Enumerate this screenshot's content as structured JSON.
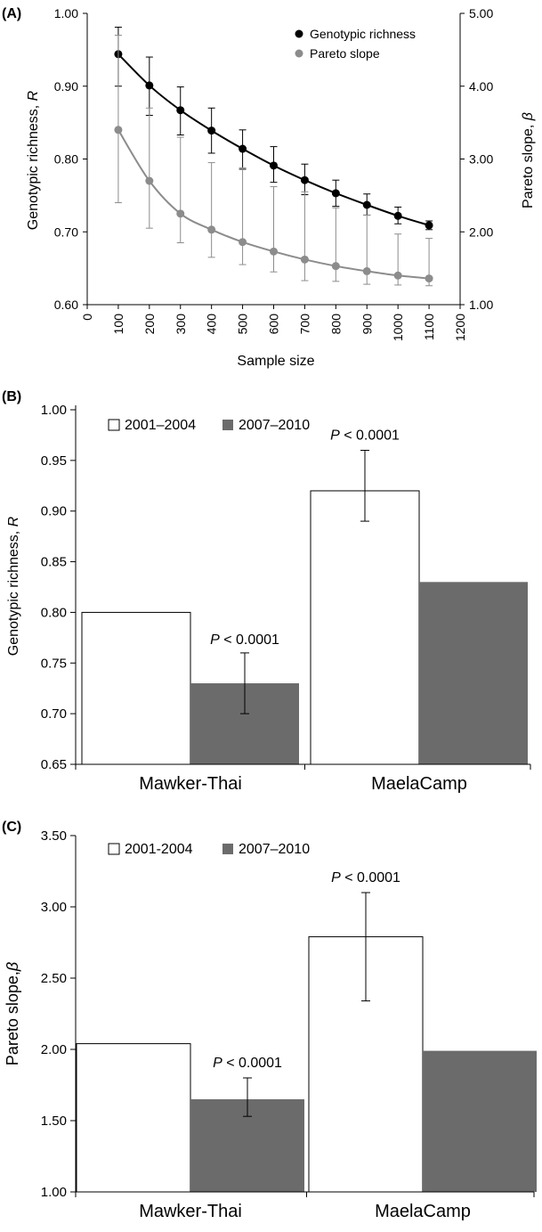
{
  "chart_data": [
    {
      "panel": "(A)",
      "type": "line",
      "xlabel": "Sample size",
      "ylabel_left": "Genotypic richness, R",
      "ylabel_right": "Pareto slope, β",
      "x_ticks": [
        "0",
        "100",
        "200",
        "300",
        "400",
        "500",
        "600",
        "700",
        "800",
        "900",
        "1000",
        "1100",
        "1200"
      ],
      "y_left_ticks": [
        "0.60",
        "0.70",
        "0.80",
        "0.90",
        "1.00"
      ],
      "y_right_ticks": [
        "1.00",
        "2.00",
        "3.00",
        "4.00",
        "5.00"
      ],
      "xlim": [
        0,
        1200
      ],
      "ylim_left": [
        0.6,
        1.0
      ],
      "ylim_right": [
        1.0,
        5.0
      ],
      "legend_position": "top-right",
      "series": [
        {
          "name": "Genotypic richness",
          "axis": "left",
          "color": "#000000",
          "x": [
            100,
            200,
            300,
            400,
            500,
            600,
            700,
            800,
            900,
            1000,
            1100
          ],
          "y": [
            0.944,
            0.901,
            0.867,
            0.839,
            0.814,
            0.791,
            0.771,
            0.753,
            0.737,
            0.722,
            0.709
          ],
          "err_low": [
            0.9,
            0.86,
            0.833,
            0.808,
            0.786,
            0.768,
            0.751,
            0.735,
            0.723,
            0.711,
            0.703
          ],
          "err_high": [
            0.981,
            0.94,
            0.899,
            0.87,
            0.84,
            0.817,
            0.793,
            0.771,
            0.752,
            0.734,
            0.715
          ]
        },
        {
          "name": "Pareto slope",
          "axis": "right",
          "color": "#8c8c8c",
          "x": [
            100,
            200,
            300,
            400,
            500,
            600,
            700,
            800,
            900,
            1000,
            1100
          ],
          "y": [
            3.4,
            2.7,
            2.25,
            2.03,
            1.86,
            1.73,
            1.62,
            1.53,
            1.46,
            1.4,
            1.36
          ],
          "err_low": [
            2.4,
            2.05,
            1.85,
            1.65,
            1.55,
            1.45,
            1.33,
            1.32,
            1.28,
            1.27,
            1.26
          ],
          "err_high": [
            4.7,
            3.7,
            3.3,
            2.95,
            2.88,
            2.62,
            2.55,
            2.33,
            2.23,
            1.97,
            1.91
          ]
        }
      ]
    },
    {
      "panel": "(B)",
      "type": "bar",
      "ylabel": "Genotypic richness, R",
      "categories": [
        "Mawker-Thai",
        "MaelaCamp"
      ],
      "y_ticks": [
        "0.65",
        "0.70",
        "0.75",
        "0.80",
        "0.85",
        "0.90",
        "0.95",
        "1.00"
      ],
      "ylim": [
        0.65,
        1.0
      ],
      "legend_position": "top-left",
      "series": [
        {
          "name": "2001–2004",
          "color": "#ffffff",
          "values": [
            0.8,
            0.92
          ]
        },
        {
          "name": "2007–2010",
          "color": "#6b6b6b",
          "values": [
            0.73,
            0.83
          ]
        }
      ],
      "error_bars": [
        {
          "category": "Mawker-Thai",
          "series": "2007–2010",
          "low": 0.7,
          "high": 0.76
        },
        {
          "category": "MaelaCamp",
          "series": "2001–2004",
          "low": 0.89,
          "high": 0.96
        }
      ],
      "annotations": [
        {
          "category": "Mawker-Thai",
          "label_italic": "P",
          "label_rest": " < 0.0001"
        },
        {
          "category": "MaelaCamp",
          "label_italic": "P",
          "label_rest": " < 0.0001"
        }
      ]
    },
    {
      "panel": "(C)",
      "type": "bar",
      "ylabel": "Pareto slope,β",
      "categories": [
        "Mawker-Thai",
        "MaelaCamp"
      ],
      "y_ticks": [
        "1.00",
        "1.50",
        "2.00",
        "2.50",
        "3.00",
        "3.50"
      ],
      "ylim": [
        1.0,
        3.5
      ],
      "legend_position": "top-left",
      "series": [
        {
          "name": "2001-2004",
          "color": "#ffffff",
          "values": [
            2.04,
            2.79
          ]
        },
        {
          "name": "2007–2010",
          "color": "#6b6b6b",
          "values": [
            1.65,
            1.99
          ]
        }
      ],
      "error_bars": [
        {
          "category": "Mawker-Thai",
          "series": "2007–2010",
          "low": 1.53,
          "high": 1.8
        },
        {
          "category": "MaelaCamp",
          "series": "2001-2004",
          "low": 2.34,
          "high": 3.1
        }
      ],
      "annotations": [
        {
          "category": "Mawker-Thai",
          "label_italic": "P",
          "label_rest": " < 0.0001"
        },
        {
          "category": "MaelaCamp",
          "label_italic": "P",
          "label_rest": " < 0.0001"
        }
      ]
    }
  ]
}
